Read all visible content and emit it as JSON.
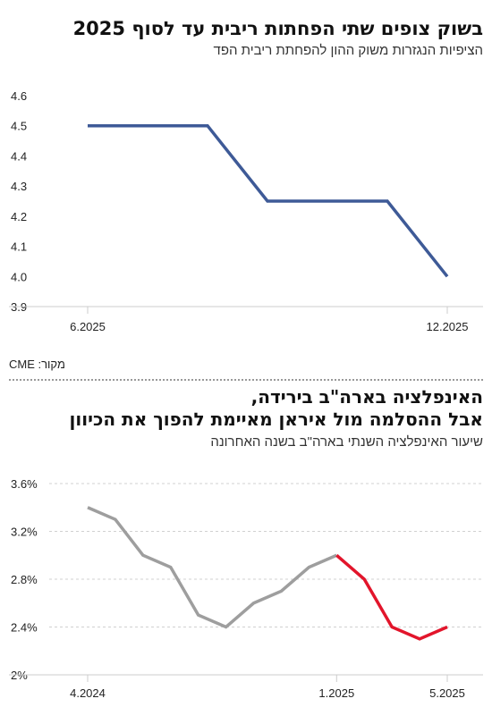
{
  "chart1": {
    "title": "בשוק צופים שתי הפחתות ריבית עד לסוף 2025",
    "subtitle": "הציפיות הנגזרות משוק ההון להפחתת ריבית הפד",
    "source": "מקור: CME"
  },
  "chart2": {
    "title_line1": "האינפלציה בארה\"ב בירידה,",
    "title_line2": "אבל ההסלמה מול איראן מאיימת להפוך את הכיוון",
    "subtitle": "שיעור האינפלציה השנתי בארה\"ב בשנה האחרונה"
  },
  "colors": {
    "line1": "#3e5a97",
    "gray": "#9e9e9e",
    "red": "#e2152b",
    "axis": "#cccccc"
  },
  "chart_data": [
    {
      "type": "line",
      "title": "בשוק צופים שתי הפחתות ריבית עד לסוף 2025",
      "subtitle": "הציפיות הנגזרות משוק ההון להפחתת ריבית הפד",
      "x": [
        "6.2025",
        "7.2025",
        "9.2025",
        "10.2025",
        "12.2025"
      ],
      "x_index": [
        0,
        2,
        3,
        5,
        6
      ],
      "x_index_range": [
        0,
        6
      ],
      "values": [
        4.5,
        4.5,
        4.25,
        4.25,
        4.0
      ],
      "xtick_labels": [
        "6.2025",
        "12.2025"
      ],
      "xtick_index": [
        0,
        6
      ],
      "ylim": [
        3.9,
        4.6
      ],
      "yticks": [
        "3.9",
        "4.0",
        "4.1",
        "4.2",
        "4.3",
        "4.4",
        "4.5",
        "4.6"
      ],
      "ytick_values": [
        3.9,
        4.0,
        4.1,
        4.2,
        4.3,
        4.4,
        4.5,
        4.6
      ],
      "grid": false
    },
    {
      "type": "line",
      "title": "האינפלציה בארה\"ב בירידה, אבל ההסלמה מול איראן מאיימת להפוך את הכיוון",
      "subtitle": "שיעור האינפלציה השנתי בארה\"ב בשנה האחרונה",
      "x": [
        "4.2024",
        "5.2024",
        "6.2024",
        "7.2024",
        "8.2024",
        "9.2024",
        "10.2024",
        "11.2024",
        "12.2024",
        "1.2025",
        "2.2025",
        "3.2025",
        "4.2025",
        "5.2025"
      ],
      "values": [
        3.4,
        3.3,
        3.0,
        2.9,
        2.5,
        2.4,
        2.6,
        2.7,
        2.9,
        3.0,
        2.8,
        2.4,
        2.3,
        2.4
      ],
      "series": [
        {
          "color": "#9e9e9e",
          "from": 0,
          "to": 9
        },
        {
          "color": "#e2152b",
          "from": 9,
          "to": 13
        }
      ],
      "xtick_labels": [
        "4.2024",
        "1.2025",
        "5.2025"
      ],
      "xtick_index": [
        0,
        9,
        13
      ],
      "ylim": [
        2.0,
        3.6
      ],
      "yticks": [
        "2%",
        "2.4%",
        "2.8%",
        "3.2%",
        "3.6%"
      ],
      "ytick_values": [
        2.0,
        2.4,
        2.8,
        3.2,
        3.6
      ],
      "grid": true
    }
  ]
}
